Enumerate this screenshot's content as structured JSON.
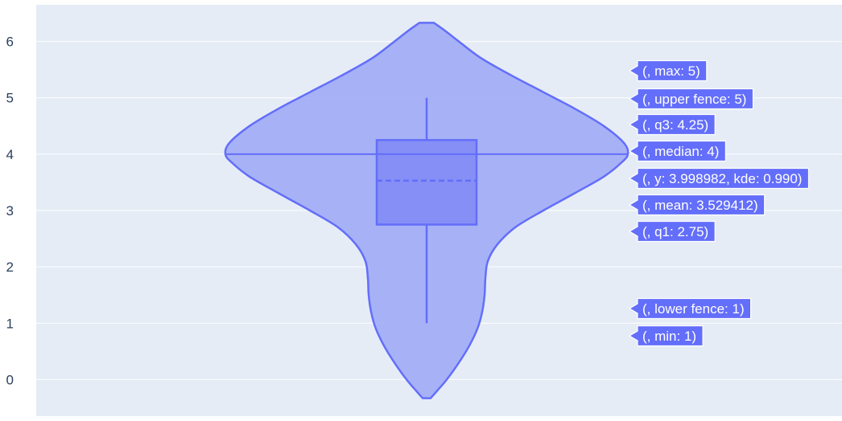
{
  "chart_data": {
    "type": "violin",
    "title": "",
    "xlabel": "",
    "ylabel": "",
    "ylim": [
      -0.65,
      6.65
    ],
    "y_ticks": [
      0,
      1,
      2,
      3,
      4,
      5,
      6
    ],
    "y_tick_labels": [
      "0",
      "1",
      "2",
      "3",
      "4",
      "5",
      "6"
    ],
    "grid": true,
    "legend": "none",
    "violin_range": [
      -0.33,
      6.33
    ],
    "density_profile": [
      {
        "y": -0.33,
        "w": 0.05
      },
      {
        "y": -0.2,
        "w": 0.13
      },
      {
        "y": 0.0,
        "w": 0.25
      },
      {
        "y": 0.3,
        "w": 0.4
      },
      {
        "y": 0.6,
        "w": 0.53
      },
      {
        "y": 0.9,
        "w": 0.63
      },
      {
        "y": 1.2,
        "w": 0.69
      },
      {
        "y": 1.5,
        "w": 0.72
      },
      {
        "y": 1.8,
        "w": 0.73
      },
      {
        "y": 2.1,
        "w": 0.76
      },
      {
        "y": 2.4,
        "w": 0.88
      },
      {
        "y": 2.7,
        "w": 1.1
      },
      {
        "y": 3.0,
        "w": 1.45
      },
      {
        "y": 3.3,
        "w": 1.83
      },
      {
        "y": 3.6,
        "w": 2.2
      },
      {
        "y": 3.85,
        "w": 2.42
      },
      {
        "y": 4.0,
        "w": 2.5
      },
      {
        "y": 4.2,
        "w": 2.45
      },
      {
        "y": 4.5,
        "w": 2.2
      },
      {
        "y": 4.8,
        "w": 1.85
      },
      {
        "y": 5.1,
        "w": 1.45
      },
      {
        "y": 5.4,
        "w": 1.05
      },
      {
        "y": 5.7,
        "w": 0.68
      },
      {
        "y": 6.0,
        "w": 0.4
      },
      {
        "y": 6.2,
        "w": 0.22
      },
      {
        "y": 6.33,
        "w": 0.09
      }
    ],
    "stats": {
      "min": 1,
      "lower_fence": 1,
      "q1": 2.75,
      "median": 4,
      "mean": 3.529412,
      "q3": 4.25,
      "upper_fence": 5,
      "max": 5,
      "kde_point": {
        "y": 3.998982,
        "kde": 0.99
      }
    },
    "hover_labels": [
      {
        "text": "(, max: 5)",
        "value": 5,
        "kind": "max"
      },
      {
        "text": "(, upper fence: 5)",
        "value": 5,
        "kind": "upper_fence"
      },
      {
        "text": "(, q3: 4.25)",
        "value": 4.25,
        "kind": "q3"
      },
      {
        "text": "(, median: 4)",
        "value": 4,
        "kind": "median"
      },
      {
        "text": "(, y: 3.998982, kde: 0.990)",
        "value": 3.998982,
        "kind": "kde"
      },
      {
        "text": "(, mean: 3.529412)",
        "value": 3.529412,
        "kind": "mean"
      },
      {
        "text": "(, q1: 2.75)",
        "value": 2.75,
        "kind": "q1"
      },
      {
        "text": "(, lower fence: 1)",
        "value": 1,
        "kind": "lower_fence"
      },
      {
        "text": "(, min: 1)",
        "value": 1,
        "kind": "min"
      }
    ],
    "colors": {
      "plot_bg": "#e5ecf6",
      "grid": "#ffffff",
      "violin_fill": "#a3aef5",
      "violin_line": "#636efa",
      "box_fill": "#7f8af5",
      "hover_bg": "#636efa",
      "hover_text": "#ffffff",
      "tick_text": "#2a3f5f"
    }
  }
}
